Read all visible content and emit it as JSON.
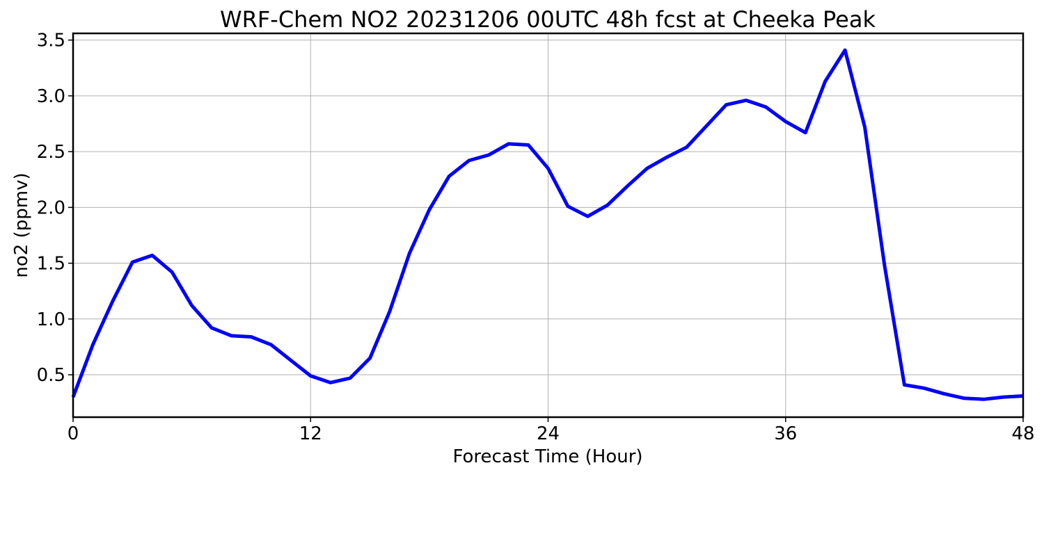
{
  "chart_data": {
    "type": "line",
    "title": "WRF-Chem NO2  20231206 00UTC 48h fcst at Cheeka Peak",
    "xlabel": "Forecast Time (Hour)",
    "ylabel": "no2  (ppmv)",
    "xlim": [
      0,
      48
    ],
    "ylim": [
      0.12,
      3.56
    ],
    "xticks": [
      0,
      12,
      24,
      36,
      48
    ],
    "yticks": [
      0.5,
      1.0,
      1.5,
      2.0,
      2.5,
      3.0,
      3.5
    ],
    "ytick_labels": [
      "0.5",
      "1.0",
      "1.5",
      "2.0",
      "2.5",
      "3.0",
      "3.5"
    ],
    "grid": true,
    "series": [
      {
        "color": "#0000ff",
        "x": [
          0,
          1,
          2,
          3,
          4,
          5,
          6,
          7,
          8,
          9,
          10,
          11,
          12,
          13,
          14,
          15,
          16,
          17,
          18,
          19,
          20,
          21,
          22,
          23,
          24,
          25,
          26,
          27,
          28,
          29,
          30,
          31,
          32,
          33,
          34,
          35,
          36,
          37,
          38,
          39,
          40,
          41,
          42,
          43,
          44,
          45,
          46,
          47,
          48
        ],
        "values": [
          0.3,
          0.77,
          1.16,
          1.51,
          1.57,
          1.42,
          1.12,
          0.92,
          0.85,
          0.84,
          0.77,
          0.63,
          0.49,
          0.43,
          0.47,
          0.65,
          1.07,
          1.59,
          1.98,
          2.28,
          2.42,
          2.47,
          2.57,
          2.56,
          2.35,
          2.01,
          1.92,
          2.02,
          2.19,
          2.35,
          2.45,
          2.54,
          2.73,
          2.92,
          2.96,
          2.9,
          2.77,
          2.67,
          3.13,
          3.41,
          2.72,
          1.48,
          0.41,
          0.38,
          0.33,
          0.29,
          0.28,
          0.3,
          0.31
        ]
      }
    ]
  }
}
